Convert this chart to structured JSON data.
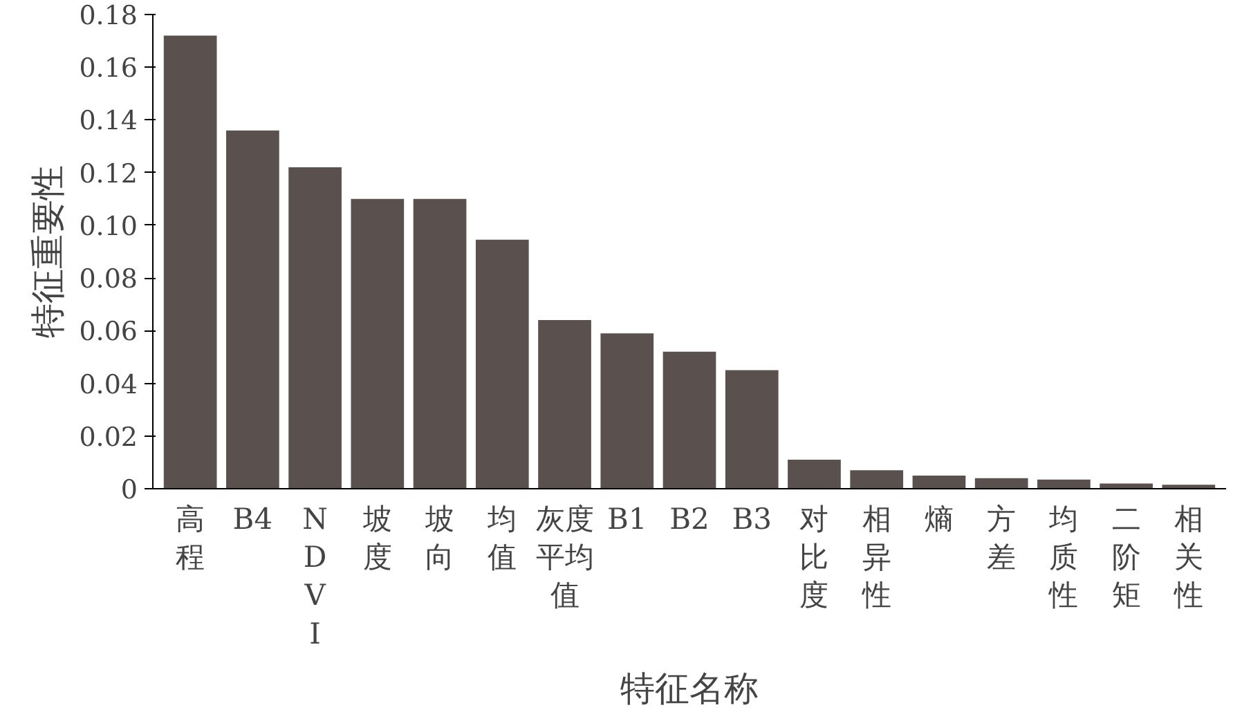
{
  "chart_data": {
    "type": "bar",
    "xlabel": "特征名称",
    "ylabel": "特征重要性",
    "categories": [
      "高程",
      "B4",
      "NDVI",
      "坡度",
      "坡向",
      "均值",
      "灰度平均值",
      "B1",
      "B2",
      "B3",
      "对比度",
      "相异性",
      "熵",
      "方差",
      "均质性",
      "二阶矩",
      "相关性"
    ],
    "values": [
      0.172,
      0.136,
      0.122,
      0.11,
      0.11,
      0.0945,
      0.064,
      0.059,
      0.052,
      0.045,
      0.011,
      0.007,
      0.005,
      0.004,
      0.0035,
      0.002,
      0.0015
    ],
    "color": "#5a514f",
    "ylim": [
      0,
      0.18
    ],
    "yticks": [
      0,
      {
        "value": 0.02,
        "label": "0.02"
      },
      {
        "value": 0.04,
        "label": "0.04"
      },
      {
        "value": 0.06,
        "label": "0.06"
      },
      {
        "value": 0.08,
        "label": "0.08"
      },
      {
        "value": 0.1,
        "label": "0.10"
      },
      {
        "value": 0.12,
        "label": "0.12"
      },
      {
        "value": 0.14,
        "label": "0.14"
      },
      {
        "value": 0.16,
        "label": "0.16"
      },
      {
        "value": 0.18,
        "label": "0.18"
      }
    ],
    "grid": false
  }
}
